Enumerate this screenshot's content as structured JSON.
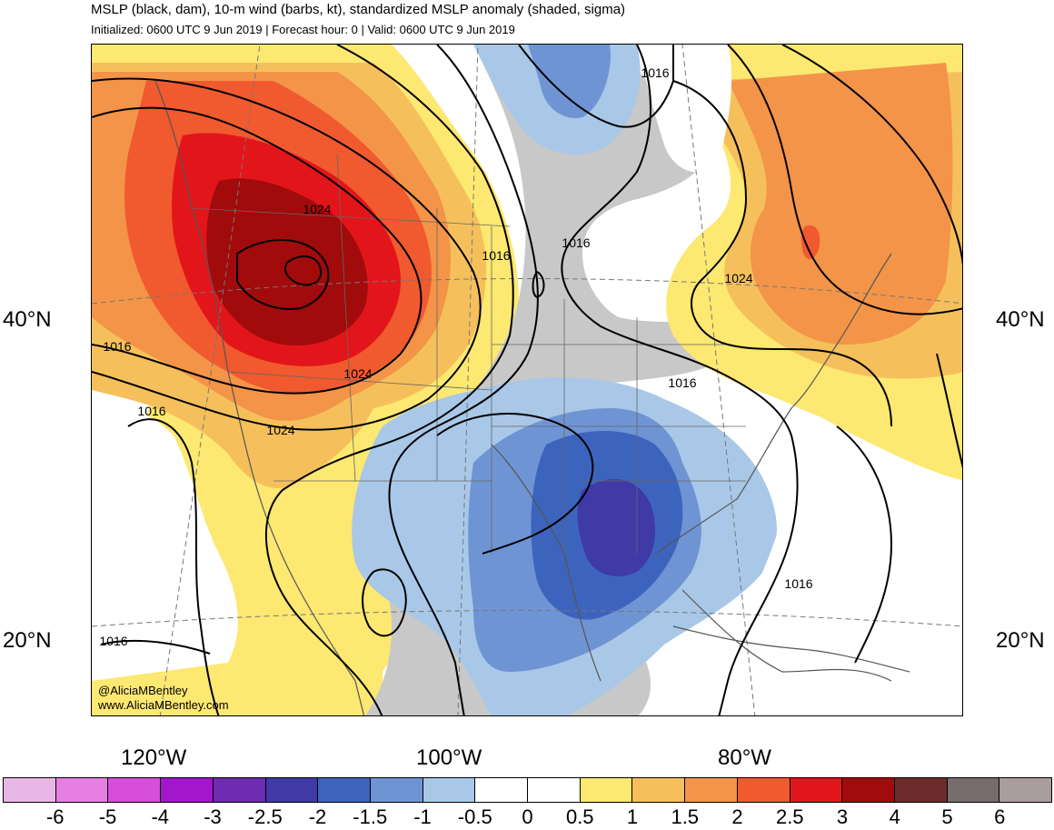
{
  "header": {
    "title": "MSLP (black, dam), 10-m wind (barbs, kt), standardized MSLP anomaly (shaded, sigma)",
    "subtitle": "Initialized: 0600 UTC 9 Jun 2019 | Forecast hour: 0 | Valid: 0600 UTC 9 Jun 2019"
  },
  "axes": {
    "lat_left": [
      "40°N",
      "20°N"
    ],
    "lat_right": [
      "40°N",
      "20°N"
    ],
    "lon": [
      "120°W",
      "100°W",
      "80°W"
    ]
  },
  "credits": {
    "handle": "@AliciaMBentley",
    "website": "www.AliciaMBentley.com"
  },
  "isobar_labels": [
    "1016",
    "1024",
    "1016",
    "1016",
    "1024",
    "1024",
    "1016",
    "1024",
    "1016",
    "1016",
    "1016",
    "1016"
  ],
  "legend": {
    "tick_labels": [
      "-6",
      "-5",
      "-4",
      "-3",
      "-2.5",
      "-2",
      "-1.5",
      "-1",
      "-0.5",
      "0",
      "0.5",
      "1",
      "1.5",
      "2",
      "2.5",
      "3",
      "4",
      "5",
      "6"
    ],
    "colors": [
      "#e9b7e6",
      "#e57fe3",
      "#d74edb",
      "#a416cc",
      "#6e2cb2",
      "#3f3aa6",
      "#3d64bd",
      "#6f94d4",
      "#a9c8e8",
      "#ffffff",
      "#ffffff",
      "#fde871",
      "#f5c05b",
      "#f39448",
      "#f05a2e",
      "#e2161a",
      "#a10b0b",
      "#6e2b2b",
      "#766c6c",
      "#aa9d9d"
    ]
  },
  "palette": {
    "neutral_gray": "#c8c8c8",
    "yellow": "#fde871",
    "light_orange": "#f5c05b",
    "orange": "#f39448",
    "red_orange": "#f05a2e",
    "red": "#e2161a",
    "dark_red": "#a10b0b",
    "light_blue": "#a9c8e8",
    "mid_blue": "#6f94d4",
    "blue": "#3d64bd",
    "dark_blue": "#3f3aa6"
  }
}
